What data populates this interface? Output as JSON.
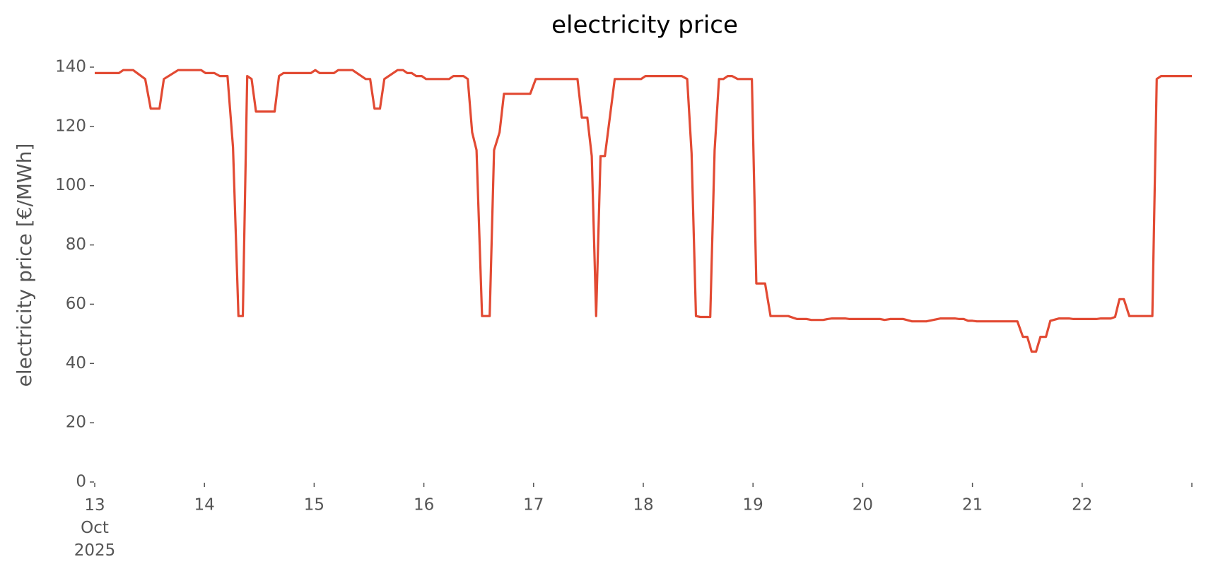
{
  "chart_data": {
    "type": "line",
    "title": "electricity price",
    "ylabel": "electricity price [€/MWh]",
    "color": "#e24a33",
    "x": [
      13.0,
      13.22,
      13.26,
      13.35,
      13.46,
      13.51,
      13.59,
      13.63,
      13.76,
      13.97,
      14.01,
      14.09,
      14.14,
      14.21,
      14.26,
      14.31,
      14.35,
      14.39,
      14.43,
      14.47,
      14.64,
      14.68,
      14.72,
      14.97,
      15.01,
      15.05,
      15.18,
      15.22,
      15.35,
      15.47,
      15.51,
      15.55,
      15.6,
      15.64,
      15.76,
      15.81,
      15.85,
      15.89,
      15.93,
      15.98,
      16.02,
      16.23,
      16.27,
      16.36,
      16.4,
      16.44,
      16.48,
      16.53,
      16.6,
      16.64,
      16.69,
      16.73,
      16.97,
      17.02,
      17.4,
      17.44,
      17.49,
      17.53,
      17.57,
      17.61,
      17.65,
      17.74,
      17.98,
      18.02,
      18.35,
      18.4,
      18.44,
      18.48,
      18.52,
      18.61,
      18.65,
      18.69,
      18.73,
      18.77,
      18.81,
      18.86,
      18.99,
      19.03,
      19.11,
      19.16,
      19.32,
      19.4,
      19.49,
      19.53,
      19.64,
      19.68,
      19.72,
      19.84,
      19.88,
      20.16,
      20.2,
      20.25,
      20.37,
      20.45,
      20.58,
      20.71,
      20.84,
      20.88,
      20.92,
      20.96,
      21.0,
      21.04,
      21.41,
      21.46,
      21.5,
      21.54,
      21.58,
      21.62,
      21.67,
      21.71,
      21.79,
      21.88,
      21.92,
      22.13,
      22.17,
      22.26,
      22.3,
      22.34,
      22.38,
      22.43,
      22.64,
      22.68,
      22.72,
      23.0
    ],
    "values": [
      138,
      138,
      139,
      139,
      136,
      126,
      126,
      136,
      139,
      139,
      138,
      138,
      137,
      137,
      113,
      56,
      56,
      137,
      136,
      125,
      125,
      137,
      138,
      138,
      139,
      138,
      138,
      139,
      139,
      136,
      136,
      126,
      126,
      136,
      139,
      139,
      138,
      138,
      137,
      137,
      136,
      136,
      137,
      137,
      136,
      118,
      112,
      56,
      56,
      112,
      118,
      131,
      131,
      136,
      136,
      123,
      123,
      110,
      56,
      110,
      110,
      136,
      136,
      137,
      137,
      136,
      111,
      56,
      55.7,
      55.7,
      112,
      136,
      136,
      137,
      137,
      136,
      136,
      67,
      67,
      56,
      56,
      55,
      55,
      54.7,
      54.7,
      55,
      55.2,
      55.2,
      55,
      55,
      54.7,
      55,
      55,
      54.2,
      54.2,
      55.2,
      55.2,
      55,
      55,
      54.4,
      54.4,
      54.2,
      54.2,
      49,
      49,
      44,
      44,
      49,
      49,
      54.4,
      55.2,
      55.2,
      55,
      55,
      55.2,
      55.2,
      55.7,
      61.7,
      61.7,
      56,
      56,
      136,
      137,
      137
    ],
    "xlim": [
      13,
      23
    ],
    "xticks": [
      {
        "value": 13,
        "label": "13 Oct 2025"
      },
      14,
      15,
      16,
      17,
      18,
      19,
      20,
      21,
      22,
      {
        "value": 23,
        "label": null
      }
    ],
    "ylim": [
      0,
      140
    ],
    "yticks": [
      0,
      20,
      40,
      60,
      80,
      100,
      120,
      140
    ]
  }
}
